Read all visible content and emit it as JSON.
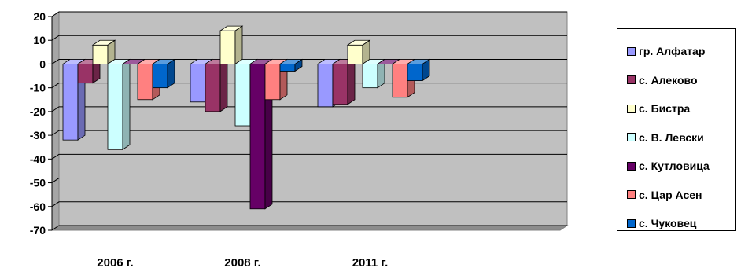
{
  "chart_data": {
    "type": "bar",
    "categories": [
      "2006 г.",
      "2008 г.",
      "2011 г."
    ],
    "series": [
      {
        "name": "гр. Алфатар",
        "color": "#9999FF",
        "values": [
          -32,
          -16,
          -18
        ]
      },
      {
        "name": "с. Алеково",
        "color": "#993366",
        "values": [
          -8,
          -20,
          -17
        ]
      },
      {
        "name": "с. Бистра",
        "color": "#FFFFCC",
        "values": [
          8,
          14,
          8
        ]
      },
      {
        "name": "с. В. Левски",
        "color": "#CCFFFF",
        "values": [
          -36,
          -26,
          -10
        ]
      },
      {
        "name": "с. Кутловица",
        "color": "#660066",
        "values": [
          0,
          -61,
          0
        ]
      },
      {
        "name": "с. Цар Асен",
        "color": "#FF8080",
        "values": [
          -15,
          -15,
          -14
        ]
      },
      {
        "name": "с. Чуковец",
        "color": "#0066CC",
        "values": [
          -10,
          -3,
          -7
        ]
      }
    ],
    "ylim": [
      -70,
      20
    ],
    "yticks": [
      "20",
      "10",
      "0",
      "-10",
      "-20",
      "-30",
      "-40",
      "-50",
      "-60",
      "-70"
    ],
    "grid": true,
    "legend_position": "right",
    "wall_color": "#C0C0C0"
  }
}
